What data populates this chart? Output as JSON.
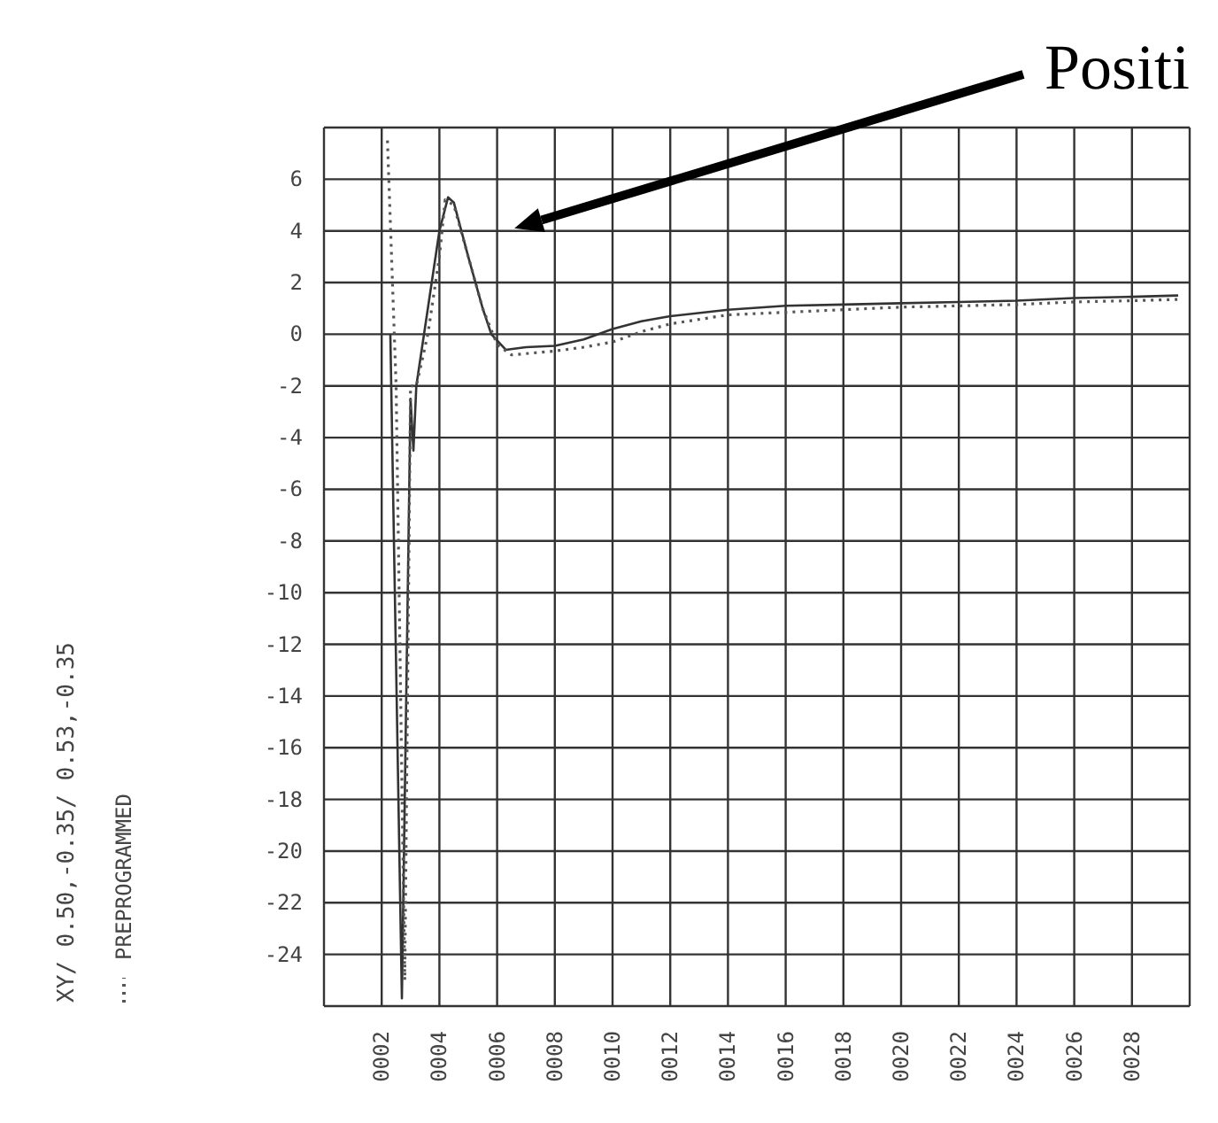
{
  "chart_data": {
    "type": "line",
    "annotations": [
      "Positi",
      "XY/ 0.50,-0.35/ 0.53,-0.35"
    ],
    "series": [
      {
        "color": "#333333",
        "line_style": "solid",
        "x": [
          2.3,
          2.7,
          3.0,
          3.1,
          3.2,
          3.6,
          4.0,
          4.3,
          4.5,
          5.0,
          5.5,
          5.8,
          6.3,
          7,
          8,
          9,
          10,
          11,
          12,
          14,
          16,
          18,
          20,
          22,
          24,
          26,
          28,
          29.6
        ],
        "values": [
          0,
          -25.7,
          -2.5,
          -4.5,
          -2,
          1,
          4,
          5.3,
          5.1,
          3,
          1,
          0,
          -0.6,
          -0.5,
          -0.45,
          -0.2,
          0.2,
          0.5,
          0.7,
          0.95,
          1.1,
          1.15,
          1.2,
          1.25,
          1.3,
          1.4,
          1.45,
          1.5
        ]
      },
      {
        "name": "PREPROGRAMMED",
        "color": "#555555",
        "line_style": "dotted",
        "x": [
          2.2,
          2.5,
          2.8,
          3.0,
          3.2,
          3.6,
          4.0,
          4.2,
          4.5,
          5.0,
          5.5,
          6.0,
          6.5,
          7,
          8,
          9,
          10,
          11,
          12,
          14,
          16,
          18,
          20,
          22,
          24,
          26,
          28,
          29.6
        ],
        "values": [
          7.5,
          -2,
          -25,
          -2,
          -2,
          0,
          3,
          5.2,
          5.0,
          3,
          1,
          -0.4,
          -0.8,
          -0.75,
          -0.65,
          -0.5,
          -0.3,
          0.1,
          0.4,
          0.75,
          0.85,
          0.95,
          1.05,
          1.1,
          1.15,
          1.25,
          1.3,
          1.35
        ]
      }
    ],
    "xlim": [
      0,
      30
    ],
    "xticks": [
      {
        "value": 0,
        "label": null
      },
      {
        "value": 2,
        "label": "0002"
      },
      {
        "value": 4,
        "label": "0004"
      },
      {
        "value": 6,
        "label": "0006"
      },
      {
        "value": 8,
        "label": "0008"
      },
      {
        "value": 10,
        "label": "0010"
      },
      {
        "value": 12,
        "label": "0012"
      },
      {
        "value": 14,
        "label": "0014"
      },
      {
        "value": 16,
        "label": "0016"
      },
      {
        "value": 18,
        "label": "0018"
      },
      {
        "value": 20,
        "label": "0020"
      },
      {
        "value": 22,
        "label": "0022"
      },
      {
        "value": 24,
        "label": "0024"
      },
      {
        "value": 26,
        "label": "0026"
      },
      {
        "value": 28,
        "label": "0028"
      }
    ],
    "ylim": [
      -26,
      8
    ],
    "yticks": [
      {
        "value": -26,
        "label": null
      },
      -24,
      -22,
      -20,
      -18,
      -16,
      -14,
      -12,
      -10,
      -8,
      -6,
      -4,
      -2,
      0,
      2,
      4,
      6,
      {
        "value": 8,
        "label": null
      }
    ],
    "grid": true,
    "legend": "left"
  }
}
